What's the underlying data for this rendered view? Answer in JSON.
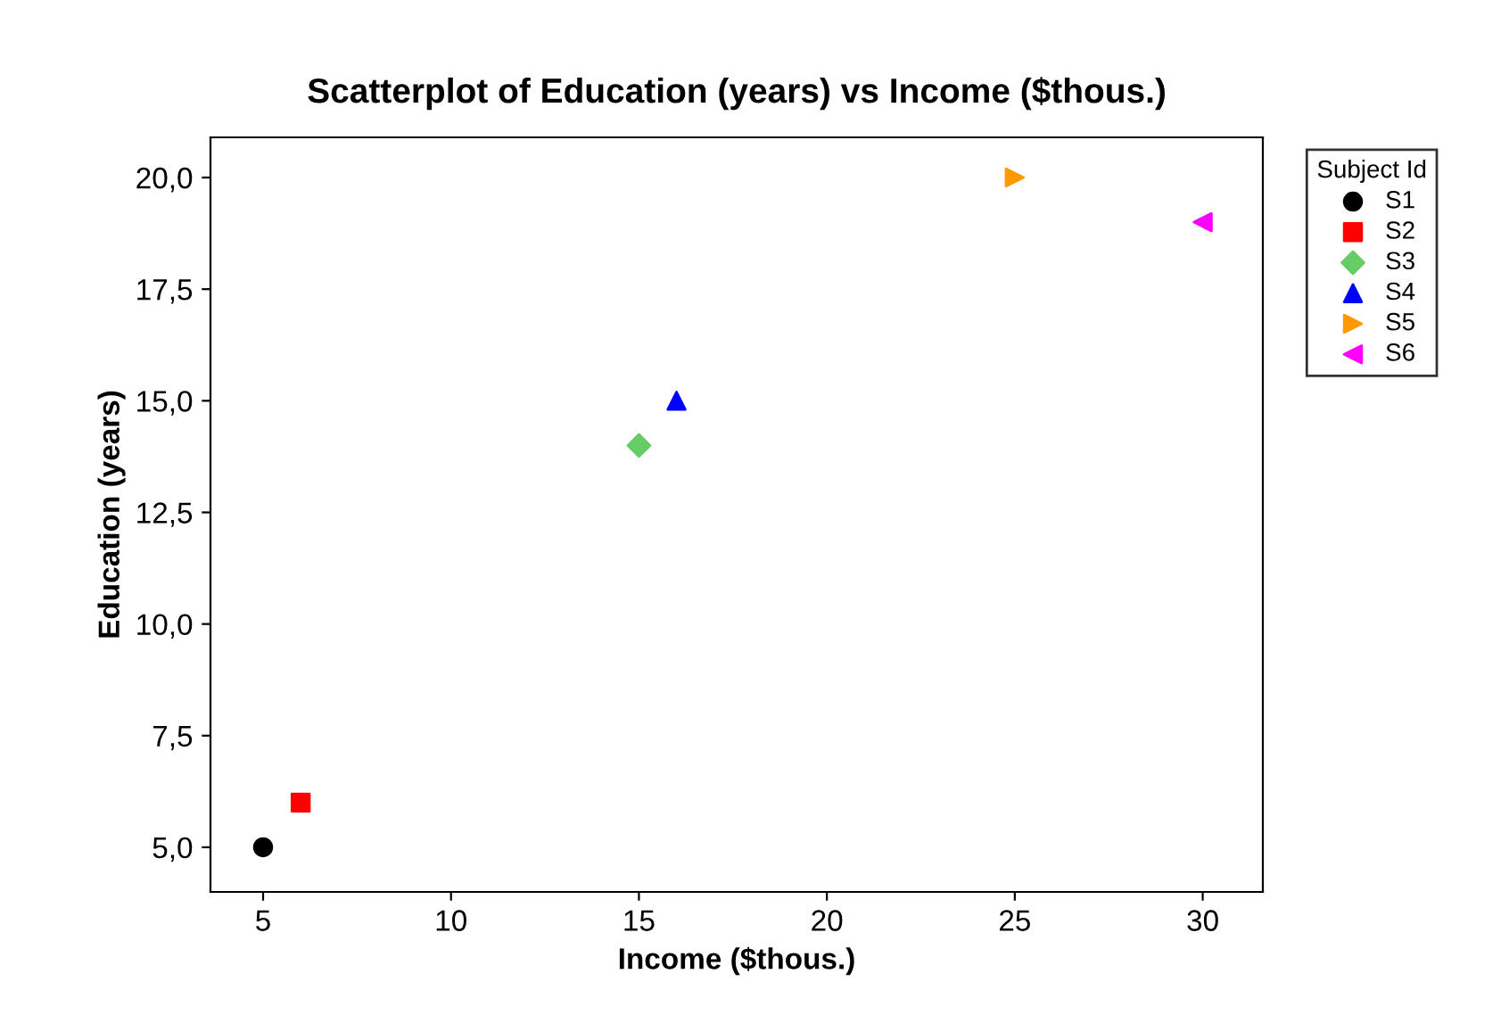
{
  "chart_data": {
    "type": "scatter",
    "title": "Scatterplot of Education (years) vs Income ($thous.)",
    "xlabel": "Income ($thous.)",
    "ylabel": "Education (years)",
    "legend_title": "Subject Id",
    "legend": "right",
    "xlim": [
      3.6,
      31.6
    ],
    "xticks": [
      5,
      10,
      15,
      20,
      25,
      30
    ],
    "ylim": [
      4,
      20.9
    ],
    "yticks": [
      {
        "value": 5,
        "label": "5,0"
      },
      {
        "value": 7.5,
        "label": "7,5"
      },
      {
        "value": 10,
        "label": "10,0"
      },
      {
        "value": 12.5,
        "label": "12,5"
      },
      {
        "value": 15,
        "label": "15,0"
      },
      {
        "value": 17.5,
        "label": "17,5"
      },
      {
        "value": 20,
        "label": "20,0"
      }
    ],
    "grid": false,
    "series": [
      {
        "name": "S1",
        "color": "#000000",
        "marker": "circle",
        "x": [
          5
        ],
        "values": [
          5
        ]
      },
      {
        "name": "S2",
        "color": "#ff0000",
        "marker": "square",
        "x": [
          6
        ],
        "values": [
          6
        ]
      },
      {
        "name": "S3",
        "color": "#66cc66",
        "marker": "diamond",
        "x": [
          15
        ],
        "values": [
          14
        ]
      },
      {
        "name": "S4",
        "color": "#0000ff",
        "marker": "triangle",
        "x": [
          16
        ],
        "values": [
          15
        ]
      },
      {
        "name": "S5",
        "color": "#ff9900",
        "marker": "triangle-right",
        "x": [
          25
        ],
        "values": [
          20
        ]
      },
      {
        "name": "S6",
        "color": "#ff00ff",
        "marker": "triangle-left",
        "x": [
          30
        ],
        "values": [
          19
        ]
      }
    ]
  }
}
